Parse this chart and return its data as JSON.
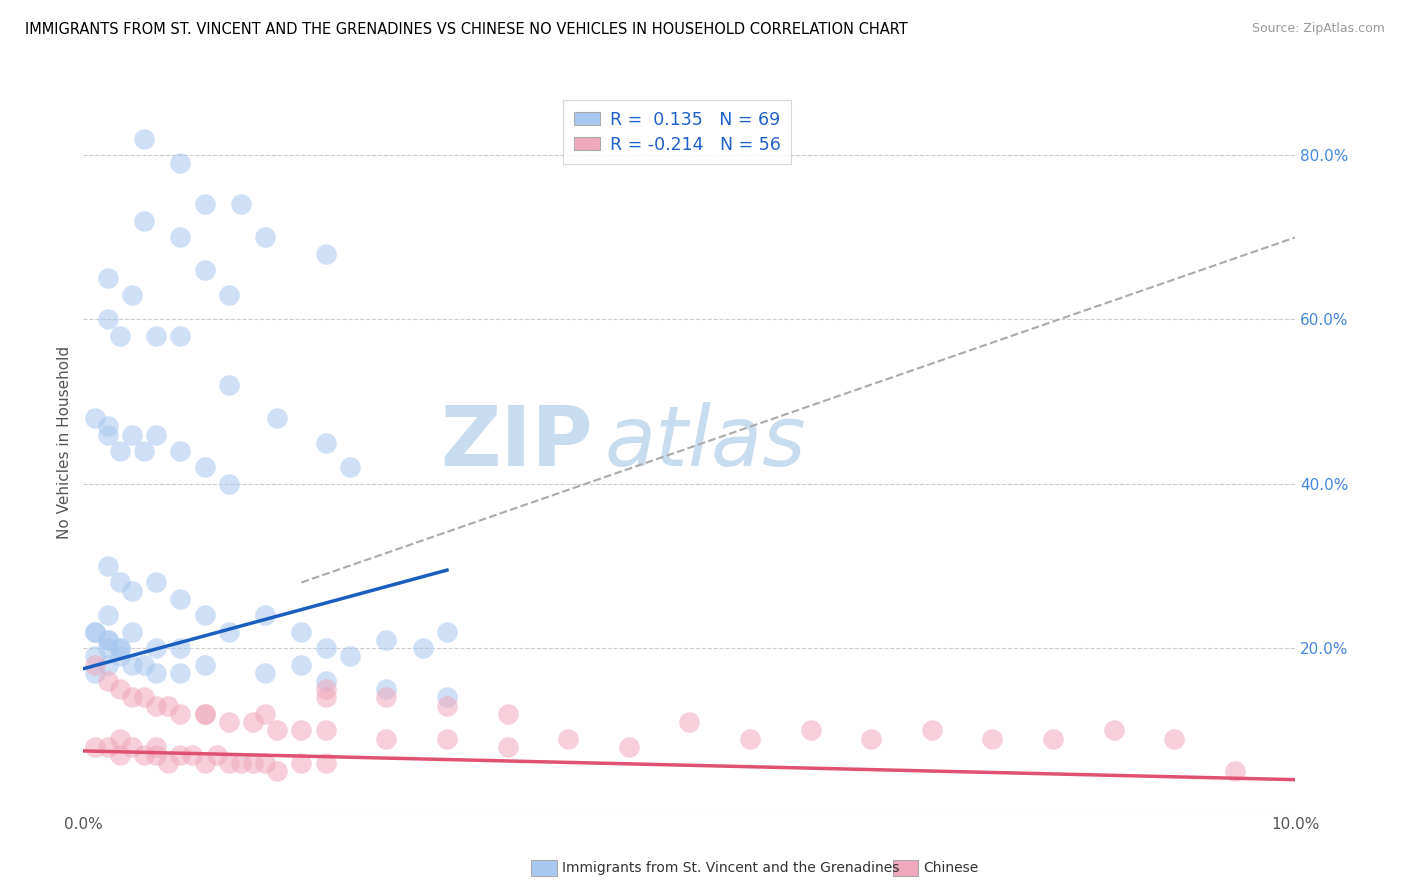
{
  "title": "IMMIGRANTS FROM ST. VINCENT AND THE GRENADINES VS CHINESE NO VEHICLES IN HOUSEHOLD CORRELATION CHART",
  "source": "Source: ZipAtlas.com",
  "ylabel": "No Vehicles in Household",
  "y_ticks_right": [
    0.2,
    0.4,
    0.6,
    0.8
  ],
  "y_tick_labels_right": [
    "20.0%",
    "40.0%",
    "60.0%",
    "80.0%"
  ],
  "legend_blue_label": "R =  0.135   N = 69",
  "legend_pink_label": "R = -0.214   N = 56",
  "blue_color": "#A8C8F0",
  "pink_color": "#F0A8BC",
  "blue_line_color": "#1A5FBF",
  "pink_line_color": "#E05070",
  "gray_line_color": "#AAAAAA",
  "legend_text_color": "#2060CC",
  "watermark_color": "#D8E8F8",
  "blue_scatter_x": [
    0.005,
    0.008,
    0.01,
    0.013,
    0.015,
    0.02,
    0.005,
    0.008,
    0.01,
    0.012,
    0.002,
    0.004,
    0.002,
    0.003,
    0.006,
    0.008,
    0.012,
    0.016,
    0.02,
    0.022,
    0.002,
    0.003,
    0.001,
    0.002,
    0.004,
    0.005,
    0.006,
    0.008,
    0.01,
    0.012,
    0.002,
    0.003,
    0.004,
    0.006,
    0.008,
    0.01,
    0.012,
    0.015,
    0.018,
    0.02,
    0.002,
    0.004,
    0.006,
    0.008,
    0.01,
    0.001,
    0.002,
    0.003,
    0.005,
    0.008,
    0.002,
    0.003,
    0.004,
    0.006,
    0.001,
    0.002,
    0.003,
    0.001,
    0.002,
    0.001,
    0.03,
    0.025,
    0.028,
    0.022,
    0.018,
    0.015,
    0.02,
    0.025,
    0.03
  ],
  "blue_scatter_y": [
    0.82,
    0.79,
    0.74,
    0.74,
    0.7,
    0.68,
    0.72,
    0.7,
    0.66,
    0.63,
    0.65,
    0.63,
    0.6,
    0.58,
    0.58,
    0.58,
    0.52,
    0.48,
    0.45,
    0.42,
    0.47,
    0.44,
    0.48,
    0.46,
    0.46,
    0.44,
    0.46,
    0.44,
    0.42,
    0.4,
    0.3,
    0.28,
    0.27,
    0.28,
    0.26,
    0.24,
    0.22,
    0.24,
    0.22,
    0.2,
    0.24,
    0.22,
    0.2,
    0.2,
    0.18,
    0.22,
    0.21,
    0.2,
    0.18,
    0.17,
    0.2,
    0.19,
    0.18,
    0.17,
    0.22,
    0.21,
    0.2,
    0.19,
    0.18,
    0.17,
    0.22,
    0.21,
    0.2,
    0.19,
    0.18,
    0.17,
    0.16,
    0.15,
    0.14
  ],
  "pink_scatter_x": [
    0.001,
    0.002,
    0.003,
    0.003,
    0.004,
    0.005,
    0.006,
    0.006,
    0.007,
    0.008,
    0.009,
    0.01,
    0.011,
    0.012,
    0.013,
    0.014,
    0.015,
    0.016,
    0.018,
    0.02,
    0.001,
    0.002,
    0.003,
    0.004,
    0.005,
    0.006,
    0.007,
    0.008,
    0.01,
    0.012,
    0.014,
    0.016,
    0.018,
    0.02,
    0.025,
    0.03,
    0.035,
    0.04,
    0.045,
    0.02,
    0.025,
    0.03,
    0.035,
    0.05,
    0.06,
    0.07,
    0.08,
    0.085,
    0.09,
    0.01,
    0.015,
    0.02,
    0.055,
    0.065,
    0.075,
    0.095
  ],
  "pink_scatter_y": [
    0.08,
    0.08,
    0.07,
    0.09,
    0.08,
    0.07,
    0.07,
    0.08,
    0.06,
    0.07,
    0.07,
    0.06,
    0.07,
    0.06,
    0.06,
    0.06,
    0.06,
    0.05,
    0.06,
    0.06,
    0.18,
    0.16,
    0.15,
    0.14,
    0.14,
    0.13,
    0.13,
    0.12,
    0.12,
    0.11,
    0.11,
    0.1,
    0.1,
    0.1,
    0.09,
    0.09,
    0.08,
    0.09,
    0.08,
    0.15,
    0.14,
    0.13,
    0.12,
    0.11,
    0.1,
    0.1,
    0.09,
    0.1,
    0.09,
    0.12,
    0.12,
    0.14,
    0.09,
    0.09,
    0.09,
    0.05
  ],
  "xlim": [
    0.0,
    0.1
  ],
  "ylim": [
    0.0,
    0.9
  ],
  "blue_trend_x": [
    0.0,
    0.03
  ],
  "blue_trend_y": [
    0.175,
    0.295
  ],
  "pink_trend_x": [
    0.0,
    0.1
  ],
  "pink_trend_y": [
    0.075,
    0.04
  ],
  "gray_trend_x": [
    0.018,
    0.1
  ],
  "gray_trend_y": [
    0.28,
    0.7
  ]
}
